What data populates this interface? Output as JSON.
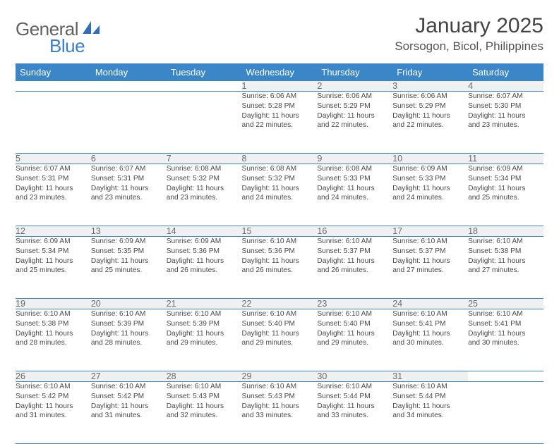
{
  "brand": {
    "text1": "General",
    "text2": "Blue"
  },
  "title": "January 2025",
  "location": "Sorsogon, Bicol, Philippines",
  "colors": {
    "header_bg": "#3b86c7",
    "header_fg": "#ffffff",
    "daynum_bg": "#eef0f1",
    "rule": "#3b86c7"
  },
  "dow": [
    "Sunday",
    "Monday",
    "Tuesday",
    "Wednesday",
    "Thursday",
    "Friday",
    "Saturday"
  ],
  "weeks": [
    {
      "nums": [
        "",
        "",
        "",
        "1",
        "2",
        "3",
        "4"
      ],
      "cells": [
        null,
        null,
        null,
        {
          "sr": "Sunrise: 6:06 AM",
          "ss": "Sunset: 5:28 PM",
          "d1": "Daylight: 11 hours",
          "d2": "and 22 minutes."
        },
        {
          "sr": "Sunrise: 6:06 AM",
          "ss": "Sunset: 5:29 PM",
          "d1": "Daylight: 11 hours",
          "d2": "and 22 minutes."
        },
        {
          "sr": "Sunrise: 6:06 AM",
          "ss": "Sunset: 5:29 PM",
          "d1": "Daylight: 11 hours",
          "d2": "and 22 minutes."
        },
        {
          "sr": "Sunrise: 6:07 AM",
          "ss": "Sunset: 5:30 PM",
          "d1": "Daylight: 11 hours",
          "d2": "and 23 minutes."
        }
      ]
    },
    {
      "nums": [
        "5",
        "6",
        "7",
        "8",
        "9",
        "10",
        "11"
      ],
      "cells": [
        {
          "sr": "Sunrise: 6:07 AM",
          "ss": "Sunset: 5:31 PM",
          "d1": "Daylight: 11 hours",
          "d2": "and 23 minutes."
        },
        {
          "sr": "Sunrise: 6:07 AM",
          "ss": "Sunset: 5:31 PM",
          "d1": "Daylight: 11 hours",
          "d2": "and 23 minutes."
        },
        {
          "sr": "Sunrise: 6:08 AM",
          "ss": "Sunset: 5:32 PM",
          "d1": "Daylight: 11 hours",
          "d2": "and 23 minutes."
        },
        {
          "sr": "Sunrise: 6:08 AM",
          "ss": "Sunset: 5:32 PM",
          "d1": "Daylight: 11 hours",
          "d2": "and 24 minutes."
        },
        {
          "sr": "Sunrise: 6:08 AM",
          "ss": "Sunset: 5:33 PM",
          "d1": "Daylight: 11 hours",
          "d2": "and 24 minutes."
        },
        {
          "sr": "Sunrise: 6:09 AM",
          "ss": "Sunset: 5:33 PM",
          "d1": "Daylight: 11 hours",
          "d2": "and 24 minutes."
        },
        {
          "sr": "Sunrise: 6:09 AM",
          "ss": "Sunset: 5:34 PM",
          "d1": "Daylight: 11 hours",
          "d2": "and 25 minutes."
        }
      ]
    },
    {
      "nums": [
        "12",
        "13",
        "14",
        "15",
        "16",
        "17",
        "18"
      ],
      "cells": [
        {
          "sr": "Sunrise: 6:09 AM",
          "ss": "Sunset: 5:34 PM",
          "d1": "Daylight: 11 hours",
          "d2": "and 25 minutes."
        },
        {
          "sr": "Sunrise: 6:09 AM",
          "ss": "Sunset: 5:35 PM",
          "d1": "Daylight: 11 hours",
          "d2": "and 25 minutes."
        },
        {
          "sr": "Sunrise: 6:09 AM",
          "ss": "Sunset: 5:36 PM",
          "d1": "Daylight: 11 hours",
          "d2": "and 26 minutes."
        },
        {
          "sr": "Sunrise: 6:10 AM",
          "ss": "Sunset: 5:36 PM",
          "d1": "Daylight: 11 hours",
          "d2": "and 26 minutes."
        },
        {
          "sr": "Sunrise: 6:10 AM",
          "ss": "Sunset: 5:37 PM",
          "d1": "Daylight: 11 hours",
          "d2": "and 26 minutes."
        },
        {
          "sr": "Sunrise: 6:10 AM",
          "ss": "Sunset: 5:37 PM",
          "d1": "Daylight: 11 hours",
          "d2": "and 27 minutes."
        },
        {
          "sr": "Sunrise: 6:10 AM",
          "ss": "Sunset: 5:38 PM",
          "d1": "Daylight: 11 hours",
          "d2": "and 27 minutes."
        }
      ]
    },
    {
      "nums": [
        "19",
        "20",
        "21",
        "22",
        "23",
        "24",
        "25"
      ],
      "cells": [
        {
          "sr": "Sunrise: 6:10 AM",
          "ss": "Sunset: 5:38 PM",
          "d1": "Daylight: 11 hours",
          "d2": "and 28 minutes."
        },
        {
          "sr": "Sunrise: 6:10 AM",
          "ss": "Sunset: 5:39 PM",
          "d1": "Daylight: 11 hours",
          "d2": "and 28 minutes."
        },
        {
          "sr": "Sunrise: 6:10 AM",
          "ss": "Sunset: 5:39 PM",
          "d1": "Daylight: 11 hours",
          "d2": "and 29 minutes."
        },
        {
          "sr": "Sunrise: 6:10 AM",
          "ss": "Sunset: 5:40 PM",
          "d1": "Daylight: 11 hours",
          "d2": "and 29 minutes."
        },
        {
          "sr": "Sunrise: 6:10 AM",
          "ss": "Sunset: 5:40 PM",
          "d1": "Daylight: 11 hours",
          "d2": "and 29 minutes."
        },
        {
          "sr": "Sunrise: 6:10 AM",
          "ss": "Sunset: 5:41 PM",
          "d1": "Daylight: 11 hours",
          "d2": "and 30 minutes."
        },
        {
          "sr": "Sunrise: 6:10 AM",
          "ss": "Sunset: 5:41 PM",
          "d1": "Daylight: 11 hours",
          "d2": "and 30 minutes."
        }
      ]
    },
    {
      "nums": [
        "26",
        "27",
        "28",
        "29",
        "30",
        "31",
        ""
      ],
      "cells": [
        {
          "sr": "Sunrise: 6:10 AM",
          "ss": "Sunset: 5:42 PM",
          "d1": "Daylight: 11 hours",
          "d2": "and 31 minutes."
        },
        {
          "sr": "Sunrise: 6:10 AM",
          "ss": "Sunset: 5:42 PM",
          "d1": "Daylight: 11 hours",
          "d2": "and 31 minutes."
        },
        {
          "sr": "Sunrise: 6:10 AM",
          "ss": "Sunset: 5:43 PM",
          "d1": "Daylight: 11 hours",
          "d2": "and 32 minutes."
        },
        {
          "sr": "Sunrise: 6:10 AM",
          "ss": "Sunset: 5:43 PM",
          "d1": "Daylight: 11 hours",
          "d2": "and 33 minutes."
        },
        {
          "sr": "Sunrise: 6:10 AM",
          "ss": "Sunset: 5:44 PM",
          "d1": "Daylight: 11 hours",
          "d2": "and 33 minutes."
        },
        {
          "sr": "Sunrise: 6:10 AM",
          "ss": "Sunset: 5:44 PM",
          "d1": "Daylight: 11 hours",
          "d2": "and 34 minutes."
        },
        null
      ]
    }
  ]
}
